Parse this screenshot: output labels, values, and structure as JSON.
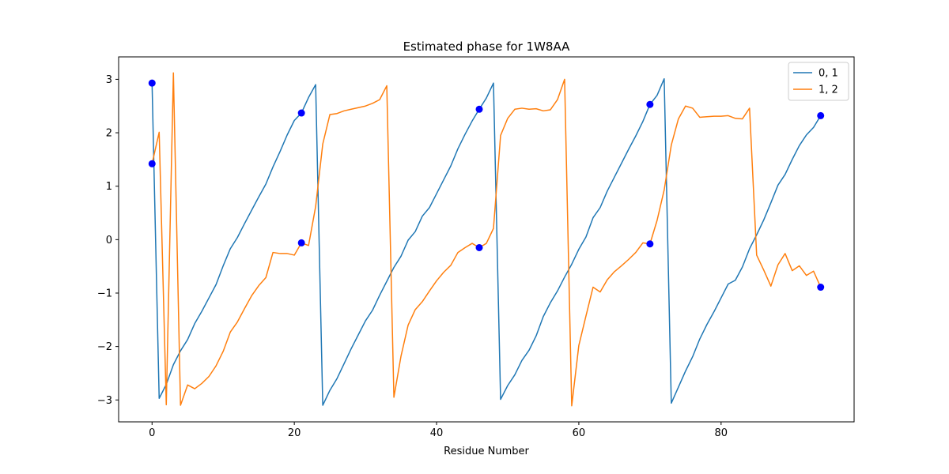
{
  "chart_data": {
    "type": "line",
    "title": "Estimated phase for 1W8AA",
    "xlabel": "Residue Number",
    "ylabel": "",
    "xlim": [
      -4.7,
      98.7
    ],
    "ylim": [
      -3.41,
      3.42
    ],
    "xticks": [
      0,
      20,
      40,
      60,
      80
    ],
    "yticks": [
      -3,
      -2,
      -1,
      0,
      1,
      2,
      3
    ],
    "ytick_labels": [
      "−3",
      "−2",
      "−1",
      "0",
      "1",
      "2",
      "3"
    ],
    "grid": false,
    "legend_position": "top-right",
    "series": [
      {
        "name": "0, 1",
        "color": "#1f77b4",
        "x": [
          0,
          1,
          2,
          3,
          4,
          5,
          6,
          7,
          8,
          9,
          10,
          11,
          12,
          13,
          14,
          15,
          16,
          17,
          18,
          19,
          20,
          21,
          22,
          23,
          24,
          25,
          26,
          27,
          28,
          29,
          30,
          31,
          32,
          33,
          34,
          35,
          36,
          37,
          38,
          39,
          40,
          41,
          42,
          43,
          44,
          45,
          46,
          47,
          48,
          49,
          50,
          51,
          52,
          53,
          54,
          55,
          56,
          57,
          58,
          59,
          60,
          61,
          62,
          63,
          64,
          65,
          66,
          67,
          68,
          69,
          70,
          71,
          72,
          73,
          74,
          75,
          76,
          77,
          78,
          79,
          80,
          81,
          82,
          83,
          84,
          85,
          86,
          87,
          88,
          89,
          90,
          91,
          92,
          93,
          94
        ],
        "y": [
          2.93,
          -2.97,
          -2.71,
          -2.34,
          -2.08,
          -1.87,
          -1.57,
          -1.34,
          -1.09,
          -0.84,
          -0.49,
          -0.17,
          0.04,
          0.3,
          0.55,
          0.8,
          1.04,
          1.36,
          1.65,
          1.96,
          2.23,
          2.37,
          2.66,
          2.9,
          -3.1,
          -2.82,
          -2.6,
          -2.32,
          -2.04,
          -1.78,
          -1.52,
          -1.32,
          -1.04,
          -0.78,
          -0.52,
          -0.31,
          -0.01,
          0.15,
          0.44,
          0.6,
          0.86,
          1.12,
          1.38,
          1.7,
          1.97,
          2.22,
          2.44,
          2.65,
          2.93,
          -2.99,
          -2.73,
          -2.53,
          -2.26,
          -2.07,
          -1.8,
          -1.44,
          -1.18,
          -0.96,
          -0.7,
          -0.46,
          -0.18,
          0.05,
          0.41,
          0.6,
          0.91,
          1.17,
          1.43,
          1.69,
          1.94,
          2.21,
          2.53,
          2.7,
          3.01,
          -3.06,
          -2.76,
          -2.46,
          -2.19,
          -1.86,
          -1.59,
          -1.35,
          -1.09,
          -0.83,
          -0.76,
          -0.51,
          -0.17,
          0.09,
          0.37,
          0.69,
          1.02,
          1.22,
          1.5,
          1.76,
          1.96,
          2.1,
          2.32
        ]
      },
      {
        "name": "1, 2",
        "color": "#ff7f0e",
        "x": [
          0,
          1,
          2,
          3,
          4,
          5,
          6,
          7,
          8,
          9,
          10,
          11,
          12,
          13,
          14,
          15,
          16,
          17,
          18,
          19,
          20,
          21,
          22,
          23,
          24,
          25,
          26,
          27,
          28,
          29,
          30,
          31,
          32,
          33,
          34,
          35,
          36,
          37,
          38,
          39,
          40,
          41,
          42,
          43,
          44,
          45,
          46,
          47,
          48,
          49,
          50,
          51,
          52,
          53,
          54,
          55,
          56,
          57,
          58,
          59,
          60,
          61,
          62,
          63,
          64,
          65,
          66,
          67,
          68,
          69,
          70,
          71,
          72,
          73,
          74,
          75,
          76,
          77,
          78,
          79,
          80,
          81,
          82,
          83,
          84,
          85,
          86,
          87,
          88,
          89,
          90,
          91,
          92,
          93,
          94
        ],
        "y": [
          1.42,
          2.01,
          -3.09,
          3.12,
          -3.1,
          -2.72,
          -2.79,
          -2.69,
          -2.56,
          -2.36,
          -2.09,
          -1.73,
          -1.54,
          -1.29,
          -1.05,
          -0.86,
          -0.71,
          -0.24,
          -0.26,
          -0.26,
          -0.29,
          -0.06,
          -0.11,
          0.62,
          1.79,
          2.34,
          2.36,
          2.41,
          2.44,
          2.47,
          2.5,
          2.55,
          2.62,
          2.88,
          -2.95,
          -2.18,
          -1.6,
          -1.31,
          -1.16,
          -0.96,
          -0.77,
          -0.61,
          -0.48,
          -0.24,
          -0.15,
          -0.07,
          -0.15,
          -0.07,
          0.21,
          1.95,
          2.27,
          2.44,
          2.46,
          2.44,
          2.45,
          2.41,
          2.43,
          2.62,
          3.0,
          -3.11,
          -1.98,
          -1.43,
          -0.89,
          -0.98,
          -0.75,
          -0.6,
          -0.49,
          -0.37,
          -0.24,
          -0.06,
          -0.08,
          0.36,
          0.93,
          1.77,
          2.26,
          2.5,
          2.46,
          2.29,
          2.3,
          2.31,
          2.31,
          2.32,
          2.27,
          2.26,
          2.46,
          -0.29,
          -0.57,
          -0.87,
          -0.47,
          -0.26,
          -0.58,
          -0.49,
          -0.67,
          -0.59,
          -0.89
        ]
      }
    ],
    "markers": {
      "color": "#0000ff",
      "x": [
        0,
        0,
        21,
        21,
        46,
        46,
        70,
        70,
        94,
        94
      ],
      "y": [
        2.93,
        1.42,
        2.37,
        -0.06,
        2.44,
        -0.15,
        2.53,
        -0.08,
        2.32,
        -0.89
      ]
    }
  }
}
